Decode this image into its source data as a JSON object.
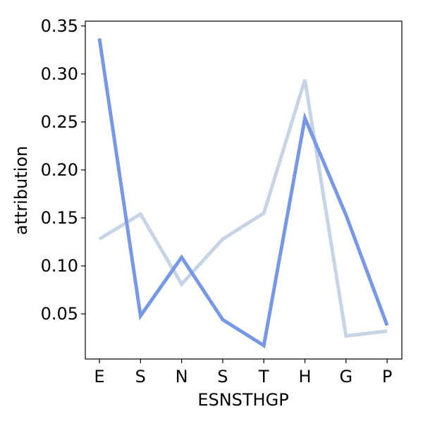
{
  "chart_data": {
    "type": "line",
    "title": "",
    "xlabel": "ESNSTHGP",
    "ylabel": "attribution",
    "categories": [
      "E",
      "S",
      "N",
      "S",
      "T",
      "H",
      "G",
      "P"
    ],
    "yticks": [
      0.05,
      0.1,
      0.15,
      0.2,
      0.25,
      0.3,
      0.35
    ],
    "ytick_labels": [
      "0.05",
      "0.10",
      "0.15",
      "0.20",
      "0.25",
      "0.30",
      "0.35"
    ],
    "ylim": [
      0.003,
      0.355
    ],
    "grid": false,
    "series": [
      {
        "color": "#c6d4e6",
        "values": [
          0.128,
          0.154,
          0.081,
          0.128,
          0.155,
          0.294,
          0.027,
          0.032
        ]
      },
      {
        "color": "#7898e3",
        "values": [
          0.337,
          0.048,
          0.109,
          0.044,
          0.017,
          0.254,
          0.153,
          0.038
        ]
      }
    ]
  }
}
